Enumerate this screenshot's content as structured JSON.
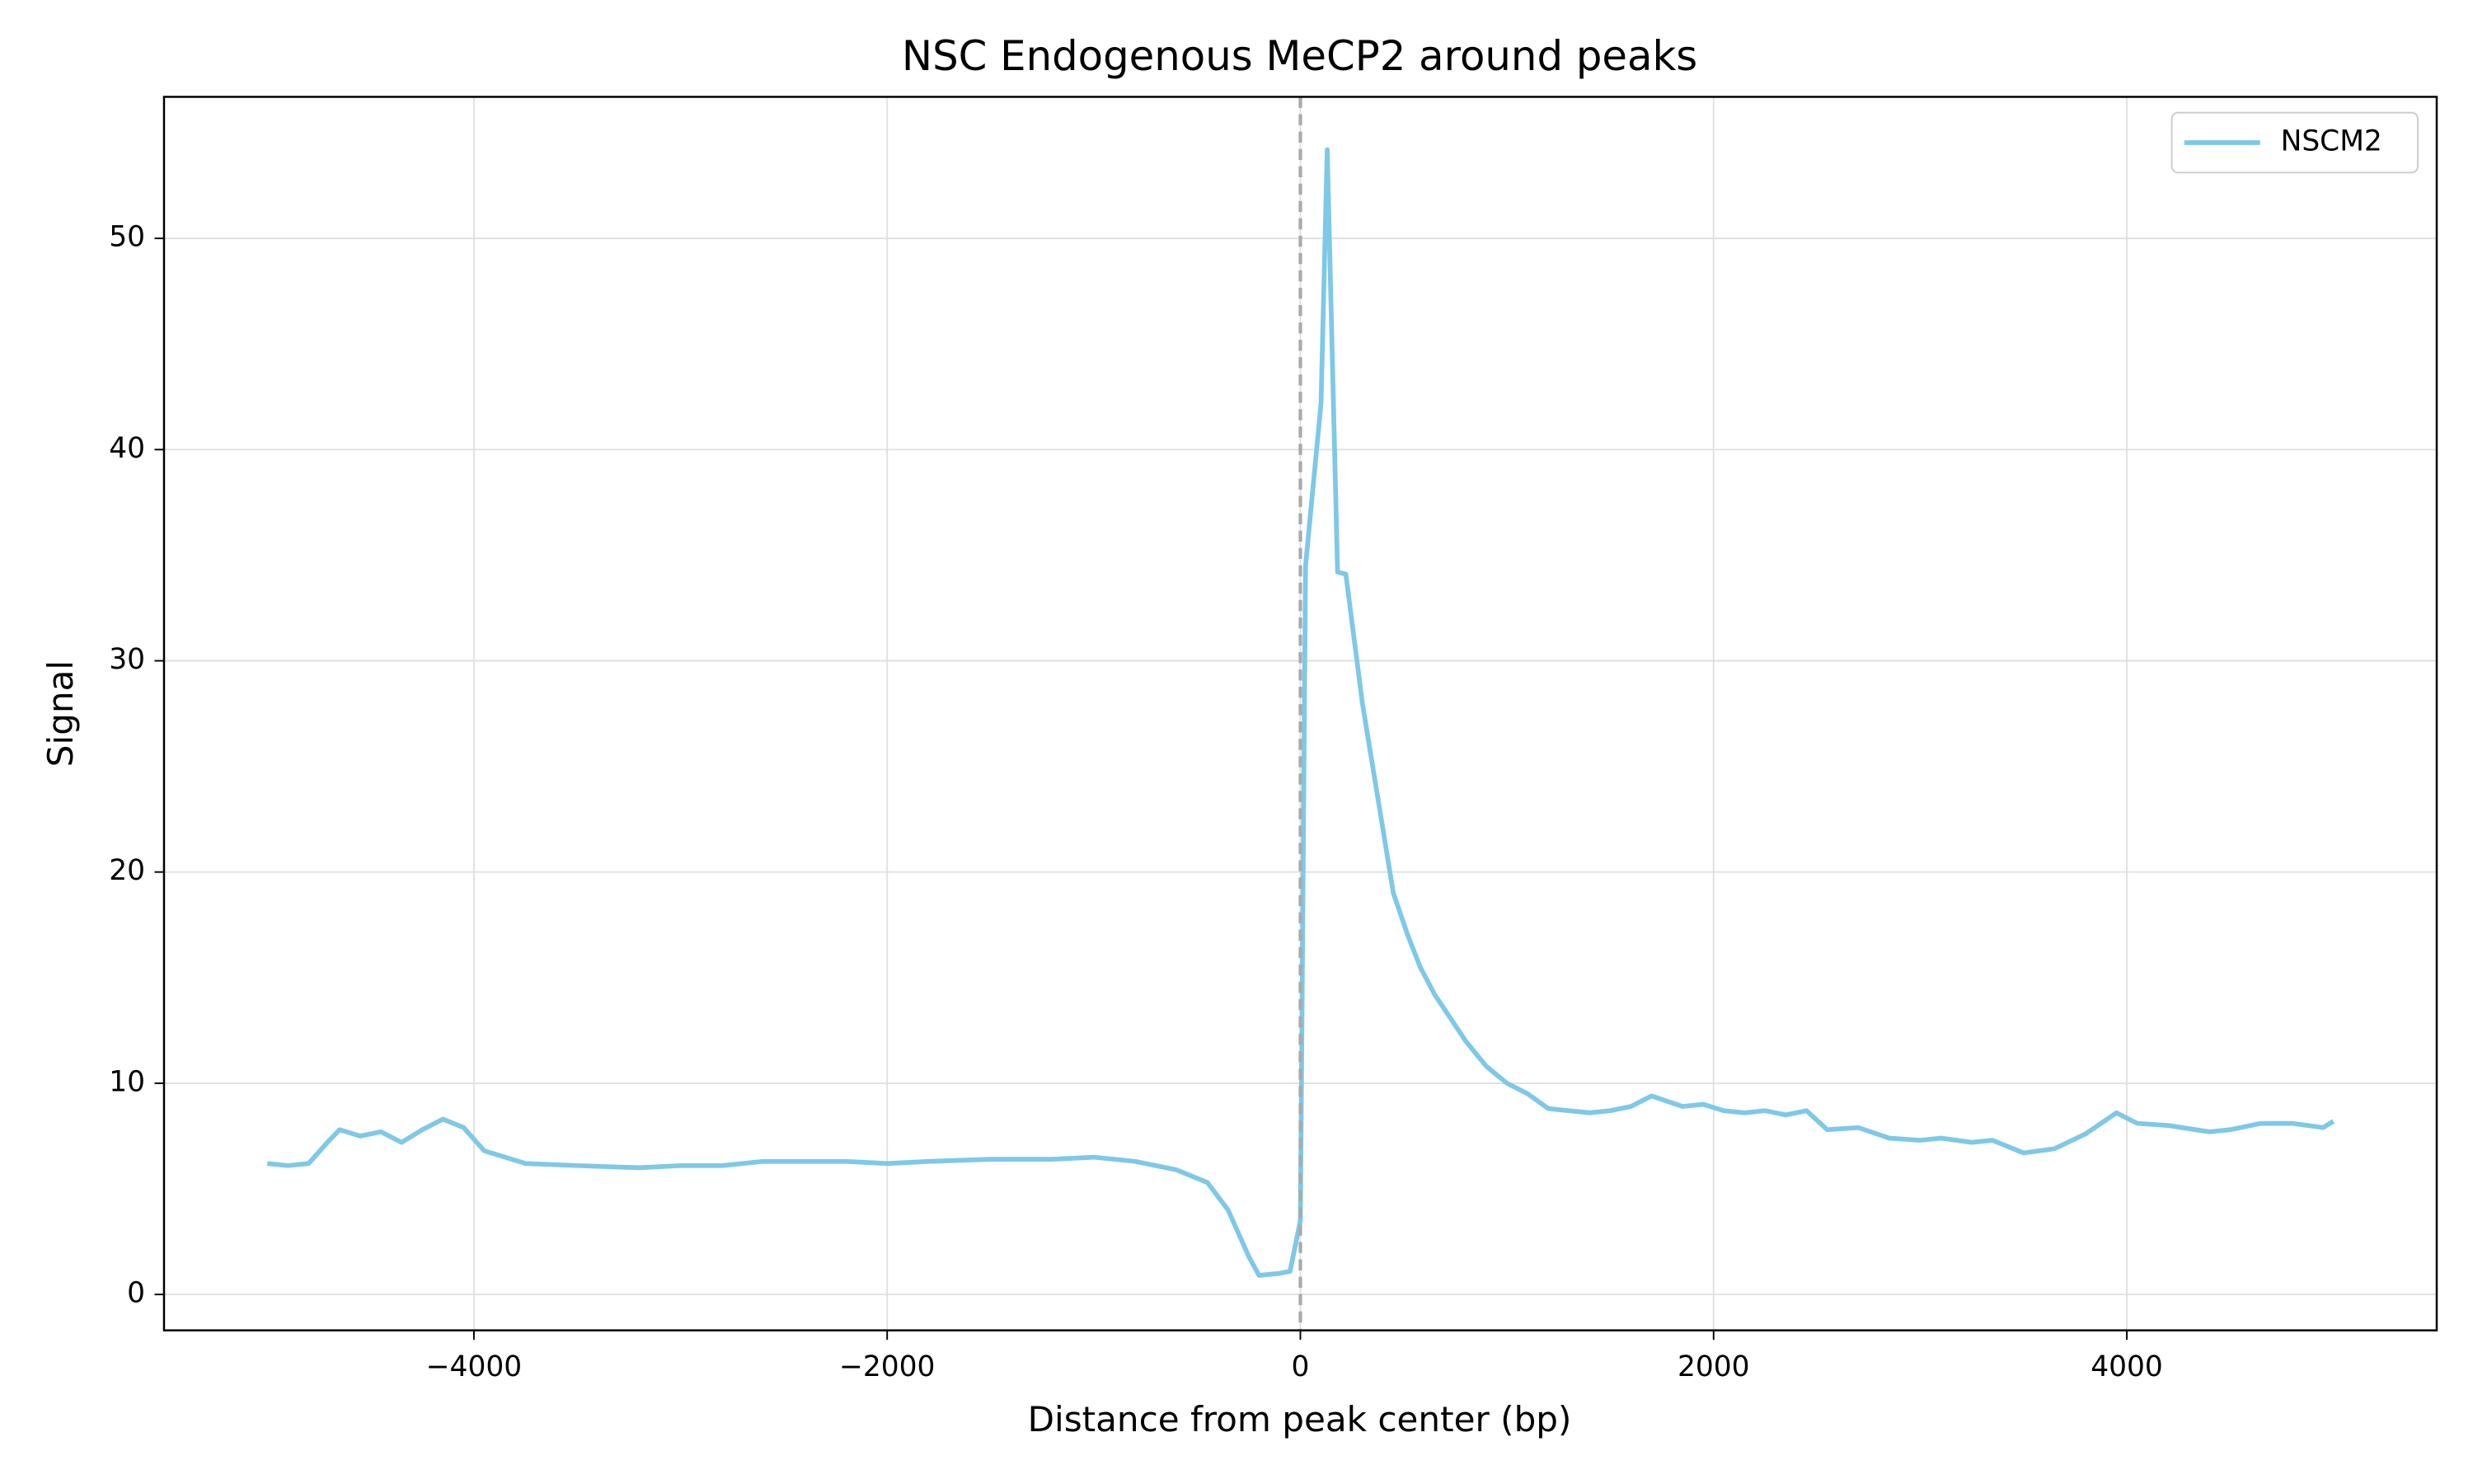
{
  "chart_data": {
    "type": "line",
    "title": "NSC Endogenous MeCP2 around peaks",
    "x_label": "Distance from peak center (bp)",
    "y_label": "Signal",
    "x": [
      -5000,
      -4900,
      -4800,
      -4700,
      -4650,
      -4550,
      -4450,
      -4350,
      -4250,
      -4150,
      -4050,
      -3950,
      -3750,
      -3500,
      -3200,
      -3000,
      -2800,
      -2600,
      -2400,
      -2200,
      -2000,
      -1800,
      -1500,
      -1200,
      -1000,
      -800,
      -600,
      -450,
      -350,
      -250,
      -200,
      -100,
      -50,
      0,
      25,
      100,
      130,
      180,
      220,
      300,
      400,
      450,
      520,
      580,
      650,
      800,
      900,
      1000,
      1100,
      1200,
      1400,
      1500,
      1600,
      1700,
      1850,
      1950,
      2050,
      2150,
      2250,
      2350,
      2450,
      2550,
      2700,
      2850,
      3000,
      3100,
      3250,
      3350,
      3500,
      3650,
      3800,
      3950,
      4050,
      4200,
      4400,
      4500,
      4650,
      4800,
      4950,
      5000
    ],
    "series": [
      {
        "name": "NSCM2",
        "color": "#7ec8e8",
        "values": [
          6.2,
          6.1,
          6.2,
          7.3,
          7.8,
          7.5,
          7.7,
          7.2,
          7.8,
          8.3,
          7.9,
          6.8,
          6.2,
          6.1,
          6.0,
          6.1,
          6.1,
          6.3,
          6.3,
          6.3,
          6.2,
          6.3,
          6.4,
          6.4,
          6.5,
          6.3,
          5.9,
          5.3,
          4.0,
          1.8,
          0.9,
          1.0,
          1.1,
          3.5,
          34.5,
          42.2,
          54.2,
          34.2,
          34.1,
          28,
          22,
          19,
          17,
          15.5,
          14.2,
          12.0,
          10.8,
          10.0,
          9.5,
          8.8,
          8.6,
          8.7,
          8.9,
          9.4,
          8.9,
          9.0,
          8.7,
          8.6,
          8.7,
          8.5,
          8.7,
          7.8,
          7.9,
          7.4,
          7.3,
          7.4,
          7.2,
          7.3,
          6.7,
          6.9,
          7.6,
          8.6,
          8.1,
          8.0,
          7.7,
          7.8,
          8.1,
          8.1,
          7.9,
          8.2
        ]
      }
    ],
    "vline": 0,
    "xlim": [
      -5500,
      5500
    ],
    "ylim": [
      -1.7,
      56.7
    ],
    "xticks": [
      {
        "value": -4000,
        "label": "−4000"
      },
      {
        "value": -2000,
        "label": "−2000"
      },
      0,
      2000,
      4000
    ],
    "yticks": [
      0,
      10,
      20,
      30,
      40,
      50
    ],
    "grid": true,
    "legend": "upper right"
  }
}
